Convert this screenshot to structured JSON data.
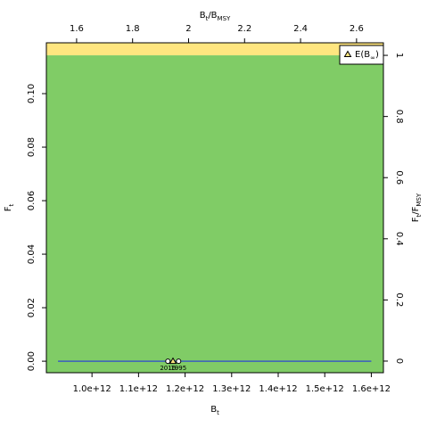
{
  "chart_data": {
    "type": "kobe",
    "xlabel": [
      {
        "text": "B"
      },
      {
        "text": "t",
        "sub": true
      }
    ],
    "ylabel": [
      {
        "text": "F"
      },
      {
        "text": "t",
        "sub": true
      }
    ],
    "x2label": [
      {
        "text": "B"
      },
      {
        "text": "t",
        "sub": true
      },
      {
        "text": "/B"
      },
      {
        "text": "MSY",
        "sub": true
      }
    ],
    "y2label": [
      {
        "text": "F"
      },
      {
        "text": "t",
        "sub": true
      },
      {
        "text": "/F"
      },
      {
        "text": "MSY",
        "sub": true
      }
    ],
    "xlim": [
      902000000000,
      1626000000000
    ],
    "xticks": [
      {
        "value": 1000000000000,
        "label": "1.0e+12"
      },
      {
        "value": 1100000000000,
        "label": "1.1e+12"
      },
      {
        "value": 1200000000000,
        "label": "1.2e+12"
      },
      {
        "value": 1300000000000,
        "label": "1.3e+12"
      },
      {
        "value": 1400000000000,
        "label": "1.4e+12"
      },
      {
        "value": 1500000000000,
        "label": "1.5e+12"
      },
      {
        "value": 1600000000000,
        "label": "1.6e+12"
      }
    ],
    "ylim": [
      -0.0043,
      0.119
    ],
    "yticks": [
      {
        "value": 0,
        "label": "0.00"
      },
      {
        "value": 0.02,
        "label": "0.02"
      },
      {
        "value": 0.04,
        "label": "0.04"
      },
      {
        "value": 0.06,
        "label": "0.06"
      },
      {
        "value": 0.08,
        "label": "0.08"
      },
      {
        "value": 0.1,
        "label": "0.10"
      }
    ],
    "x2lim": [
      1.492,
      2.696
    ],
    "x2ticks": [
      1.6,
      1.8,
      2,
      2.2,
      2.4,
      2.6
    ],
    "y2lim": [
      -0.038,
      1.041
    ],
    "y2ticks": [
      0,
      0.2,
      0.4,
      0.6,
      0.8,
      1
    ],
    "y2_threshold": 1,
    "zone_colors": {
      "below": "#80cc66",
      "above": "#ffe680"
    },
    "series": [
      {
        "color": "#3b5fc0",
        "x": [
          927000000000,
          1600000000000
        ],
        "y": [
          0,
          0
        ]
      }
    ],
    "points": [
      {
        "label": "2016",
        "x": 1163000000000,
        "y": 0
      },
      {
        "label": "1995",
        "x": 1186000000000,
        "y": 0
      }
    ],
    "expected": {
      "name": [
        {
          "text": "E(B"
        },
        {
          "text": "∞",
          "sub": true
        },
        {
          "text": ")"
        }
      ],
      "x": 1174000000000,
      "y": 0,
      "color": "#ffe680"
    }
  }
}
